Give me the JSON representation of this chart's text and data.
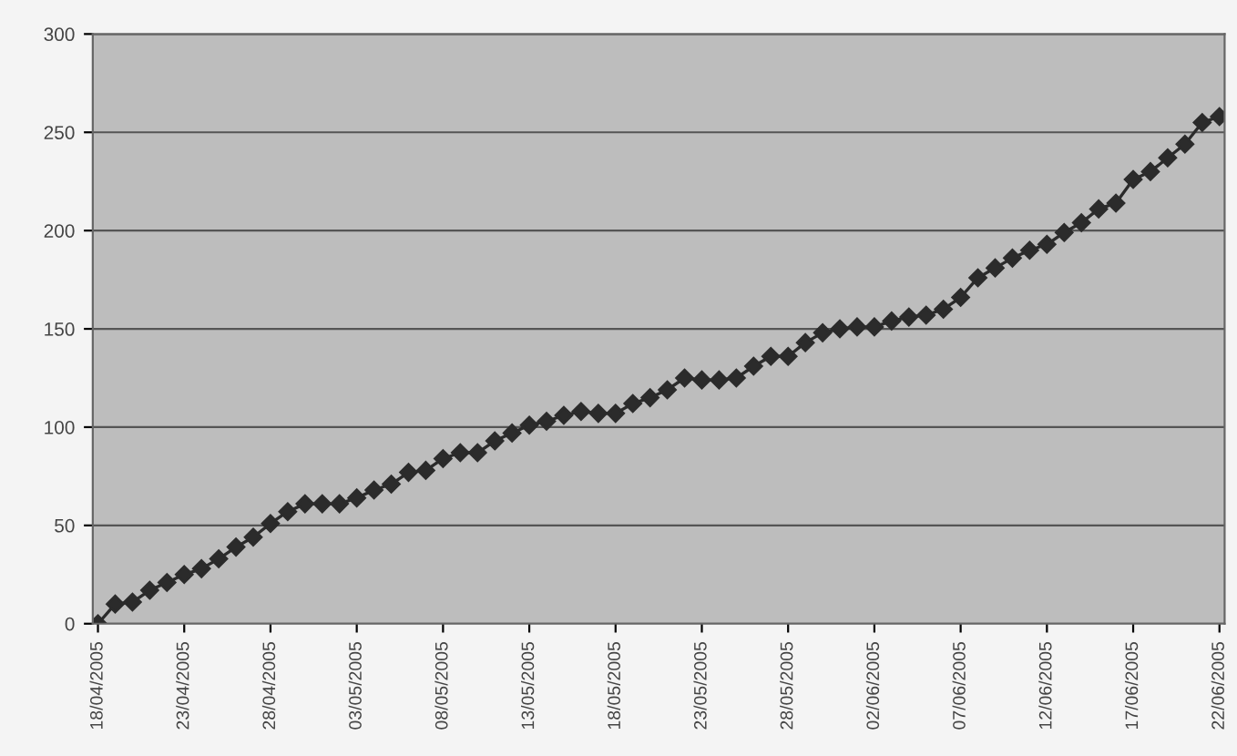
{
  "chart_data": {
    "type": "line",
    "categories": [
      "18/04/2005",
      null,
      null,
      null,
      null,
      "23/04/2005",
      null,
      null,
      null,
      null,
      "28/04/2005",
      null,
      null,
      null,
      null,
      "03/05/2005",
      null,
      null,
      null,
      null,
      "08/05/2005",
      null,
      null,
      null,
      null,
      "13/05/2005",
      null,
      null,
      null,
      null,
      "18/05/2005",
      null,
      null,
      null,
      null,
      "23/05/2005",
      null,
      null,
      null,
      null,
      "28/05/2005",
      null,
      null,
      null,
      null,
      "02/06/2005",
      null,
      null,
      null,
      null,
      "07/06/2005",
      null,
      null,
      null,
      null,
      "12/06/2005",
      null,
      null,
      null,
      null,
      "17/06/2005",
      null,
      null,
      null,
      null,
      "22/06/2005"
    ],
    "series": [
      {
        "color": "#2b2b2b",
        "values": [
          0,
          10,
          11,
          17,
          21,
          25,
          28,
          33,
          39,
          44,
          51,
          57,
          61,
          61,
          61,
          64,
          68,
          71,
          77,
          78,
          84,
          87,
          87,
          93,
          97,
          101,
          103,
          106,
          108,
          107,
          107,
          112,
          115,
          119,
          125,
          124,
          124,
          125,
          131,
          136,
          136,
          143,
          148,
          150,
          151,
          151,
          154,
          156,
          157,
          160,
          166,
          176,
          181,
          186,
          190,
          193,
          199,
          204,
          211,
          214,
          226,
          230,
          237,
          244,
          255,
          258
        ]
      }
    ],
    "ylim": [
      0,
      300
    ],
    "yticks": [
      0,
      50,
      100,
      150,
      200,
      250,
      300
    ],
    "grid": "y",
    "marker": "diamond",
    "line_style": "solid",
    "legend": false
  }
}
